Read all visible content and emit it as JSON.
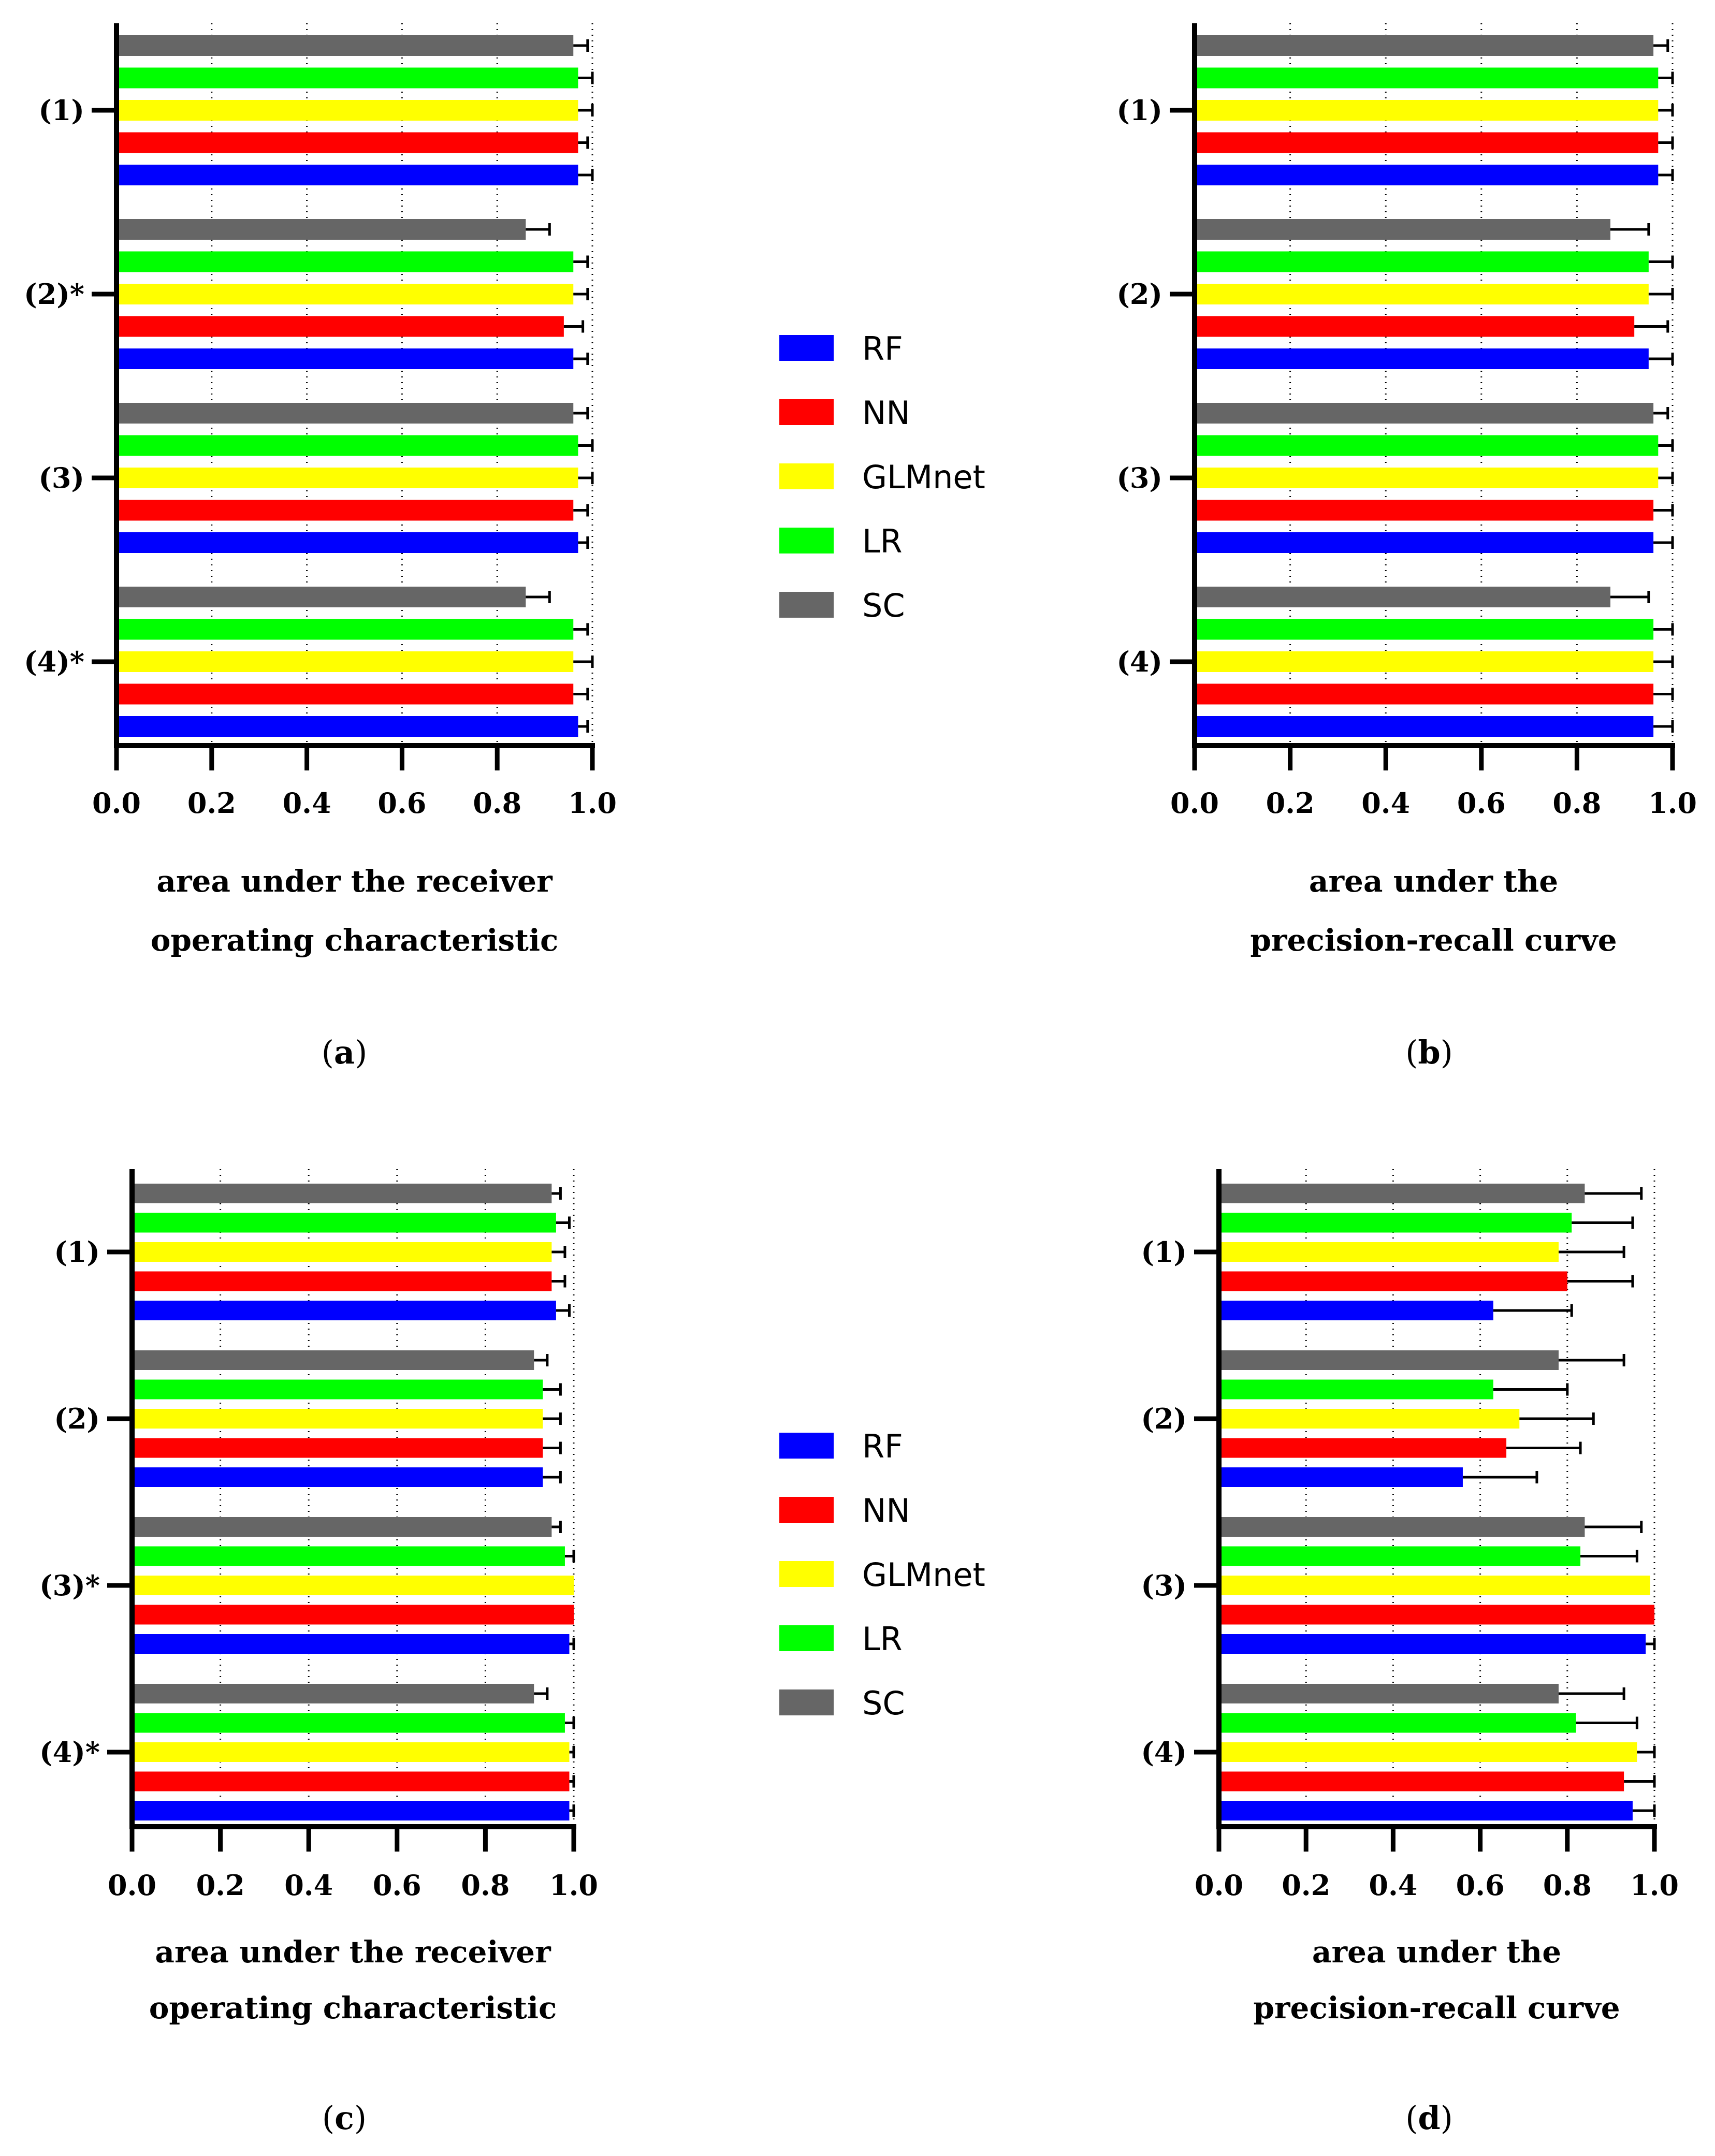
{
  "legend": [
    {
      "key": "RF",
      "label": "RF",
      "color": "#0000ff"
    },
    {
      "key": "NN",
      "label": "NN",
      "color": "#ff0000"
    },
    {
      "key": "GLMnet",
      "label": "GLMnet",
      "color": "#ffff00"
    },
    {
      "key": "LR",
      "label": "LR",
      "color": "#00ff00"
    },
    {
      "key": "SC",
      "label": "SC",
      "color": "#666666"
    }
  ],
  "chart_data": [
    {
      "id": "a",
      "type": "bar",
      "orientation": "horizontal",
      "panel_label": "a",
      "categories": [
        "(1)",
        "(2)*",
        "(3)",
        "(4)*"
      ],
      "xlabel_lines": [
        "area under the receiver",
        "operating characteristic"
      ],
      "xlim": [
        0,
        1
      ],
      "xticks": [
        "0.0",
        "0.2",
        "0.4",
        "0.6",
        "0.8",
        "1.0"
      ],
      "grid": "vertical dotted",
      "series": [
        {
          "name": "SC",
          "values": [
            0.96,
            0.86,
            0.96,
            0.86
          ],
          "errors": [
            0.03,
            0.05,
            0.03,
            0.05
          ]
        },
        {
          "name": "LR",
          "values": [
            0.97,
            0.96,
            0.97,
            0.96
          ],
          "errors": [
            0.03,
            0.03,
            0.03,
            0.03
          ]
        },
        {
          "name": "GLMnet",
          "values": [
            0.97,
            0.96,
            0.97,
            0.96
          ],
          "errors": [
            0.03,
            0.03,
            0.03,
            0.04
          ]
        },
        {
          "name": "NN",
          "values": [
            0.97,
            0.94,
            0.96,
            0.96
          ],
          "errors": [
            0.02,
            0.04,
            0.03,
            0.03
          ]
        },
        {
          "name": "RF",
          "values": [
            0.97,
            0.96,
            0.97,
            0.97
          ],
          "errors": [
            0.03,
            0.03,
            0.02,
            0.02
          ]
        }
      ]
    },
    {
      "id": "b",
      "type": "bar",
      "orientation": "horizontal",
      "panel_label": "b",
      "categories": [
        "(1)",
        "(2)",
        "(3)",
        "(4)"
      ],
      "xlabel_lines": [
        "area under the",
        "precision-recall curve"
      ],
      "xlim": [
        0,
        1
      ],
      "xticks": [
        "0.0",
        "0.2",
        "0.4",
        "0.6",
        "0.8",
        "1.0"
      ],
      "grid": "vertical dotted",
      "series": [
        {
          "name": "SC",
          "values": [
            0.96,
            0.87,
            0.96,
            0.87
          ],
          "errors": [
            0.03,
            0.08,
            0.03,
            0.08
          ]
        },
        {
          "name": "LR",
          "values": [
            0.97,
            0.95,
            0.97,
            0.96
          ],
          "errors": [
            0.03,
            0.05,
            0.03,
            0.04
          ]
        },
        {
          "name": "GLMnet",
          "values": [
            0.97,
            0.95,
            0.97,
            0.96
          ],
          "errors": [
            0.03,
            0.05,
            0.03,
            0.04
          ]
        },
        {
          "name": "NN",
          "values": [
            0.97,
            0.92,
            0.96,
            0.96
          ],
          "errors": [
            0.03,
            0.07,
            0.04,
            0.04
          ]
        },
        {
          "name": "RF",
          "values": [
            0.97,
            0.95,
            0.96,
            0.96
          ],
          "errors": [
            0.03,
            0.05,
            0.04,
            0.04
          ]
        }
      ]
    },
    {
      "id": "c",
      "type": "bar",
      "orientation": "horizontal",
      "panel_label": "c",
      "categories": [
        "(1)",
        "(2)",
        "(3)*",
        "(4)*"
      ],
      "xlabel_lines": [
        "area under the receiver",
        "operating characteristic"
      ],
      "xlim": [
        0,
        1
      ],
      "xticks": [
        "0.0",
        "0.2",
        "0.4",
        "0.6",
        "0.8",
        "1.0"
      ],
      "grid": "vertical dotted",
      "series": [
        {
          "name": "SC",
          "values": [
            0.95,
            0.91,
            0.95,
            0.91
          ],
          "errors": [
            0.02,
            0.03,
            0.02,
            0.03
          ]
        },
        {
          "name": "LR",
          "values": [
            0.96,
            0.93,
            0.98,
            0.98
          ],
          "errors": [
            0.03,
            0.04,
            0.02,
            0.02
          ]
        },
        {
          "name": "GLMnet",
          "values": [
            0.95,
            0.93,
            1.0,
            0.99
          ],
          "errors": [
            0.03,
            0.04,
            0.0,
            0.01
          ]
        },
        {
          "name": "NN",
          "values": [
            0.95,
            0.93,
            1.0,
            0.99
          ],
          "errors": [
            0.03,
            0.04,
            0.0,
            0.01
          ]
        },
        {
          "name": "RF",
          "values": [
            0.96,
            0.93,
            0.99,
            0.99
          ],
          "errors": [
            0.03,
            0.04,
            0.01,
            0.01
          ]
        }
      ]
    },
    {
      "id": "d",
      "type": "bar",
      "orientation": "horizontal",
      "panel_label": "d",
      "categories": [
        "(1)",
        "(2)",
        "(3)",
        "(4)"
      ],
      "xlabel_lines": [
        "area under the",
        "precision-recall curve"
      ],
      "xlim": [
        0,
        1
      ],
      "xticks": [
        "0.0",
        "0.2",
        "0.4",
        "0.6",
        "0.8",
        "1.0"
      ],
      "grid": "vertical dotted",
      "series": [
        {
          "name": "SC",
          "values": [
            0.84,
            0.78,
            0.84,
            0.78
          ],
          "errors": [
            0.13,
            0.15,
            0.13,
            0.15
          ]
        },
        {
          "name": "LR",
          "values": [
            0.81,
            0.63,
            0.83,
            0.82
          ],
          "errors": [
            0.14,
            0.17,
            0.13,
            0.14
          ]
        },
        {
          "name": "GLMnet",
          "values": [
            0.78,
            0.69,
            0.99,
            0.96
          ],
          "errors": [
            0.15,
            0.17,
            0.0,
            0.04
          ]
        },
        {
          "name": "NN",
          "values": [
            0.8,
            0.66,
            1.0,
            0.93
          ],
          "errors": [
            0.15,
            0.17,
            0.0,
            0.07
          ]
        },
        {
          "name": "RF",
          "values": [
            0.63,
            0.56,
            0.98,
            0.95
          ],
          "errors": [
            0.18,
            0.17,
            0.02,
            0.05
          ]
        }
      ]
    }
  ]
}
